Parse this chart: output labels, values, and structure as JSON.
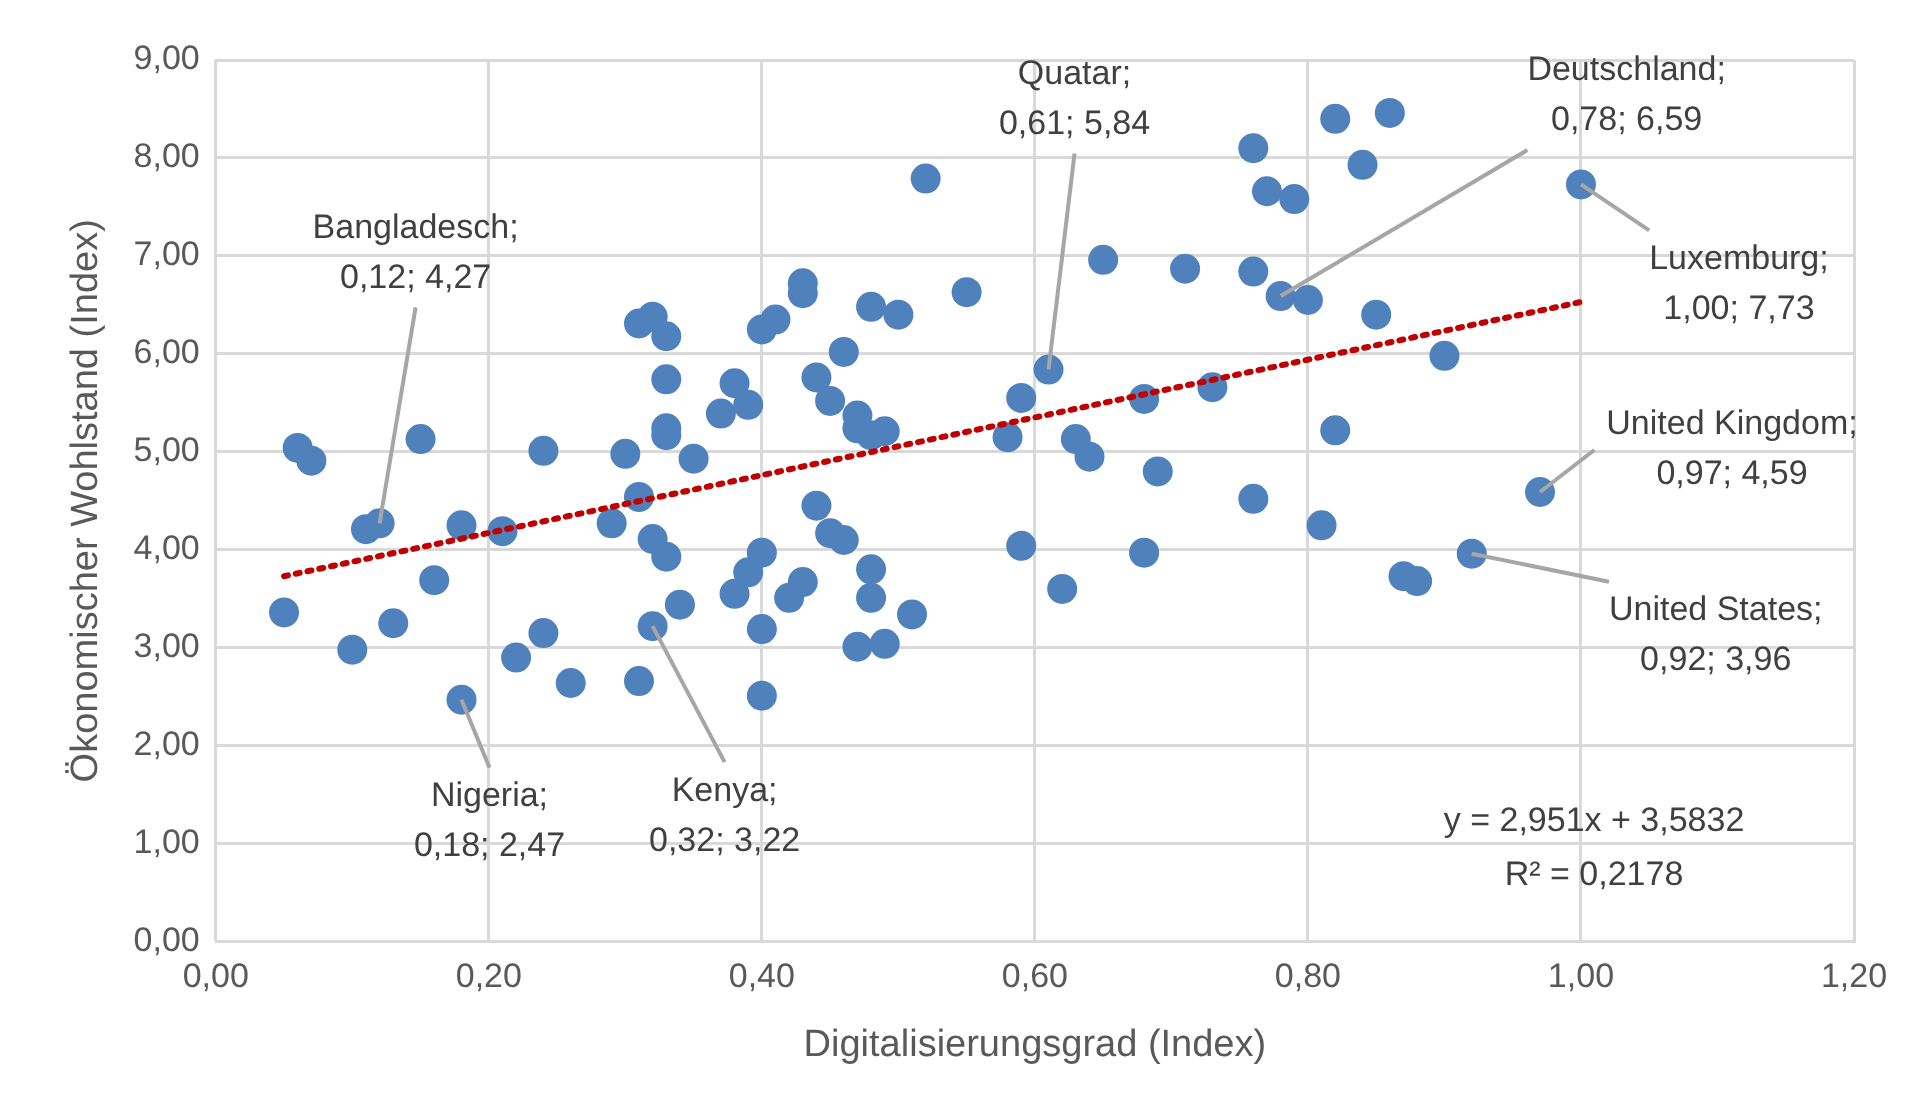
{
  "chart_data": {
    "type": "scatter",
    "xlabel": "Digitalisierungsgrad (Index)",
    "ylabel": "Ökonomischer Wohlstand (Index)",
    "xlim": [
      0,
      1.2
    ],
    "ylim": [
      0,
      9
    ],
    "xticks": [
      {
        "value": 0,
        "label": "0,00"
      },
      {
        "value": 0.2,
        "label": "0,20"
      },
      {
        "value": 0.4,
        "label": "0,40"
      },
      {
        "value": 0.6,
        "label": "0,60"
      },
      {
        "value": 0.8,
        "label": "0,80"
      },
      {
        "value": 1,
        "label": "1,00"
      },
      {
        "value": 1.2,
        "label": "1,20"
      }
    ],
    "yticks": [
      {
        "value": 0,
        "label": "0,00"
      },
      {
        "value": 1,
        "label": "1,00"
      },
      {
        "value": 2,
        "label": "2,00"
      },
      {
        "value": 3,
        "label": "3,00"
      },
      {
        "value": 4,
        "label": "4,00"
      },
      {
        "value": 5,
        "label": "5,00"
      },
      {
        "value": 6,
        "label": "6,00"
      },
      {
        "value": 7,
        "label": "7,00"
      },
      {
        "value": 8,
        "label": "8,00"
      },
      {
        "value": 9,
        "label": "9,00"
      }
    ],
    "grid": true,
    "legend": false,
    "marker": "circle",
    "series": [
      {
        "color": "#4f81bd",
        "x": [
          0.31,
          0.32,
          0.33,
          0.33,
          0.38,
          0.37,
          0.39,
          0.33,
          0.33,
          0.35,
          0.31,
          0.29,
          0.3,
          0.24,
          0.32,
          0.33,
          0.34,
          0.32,
          0.31,
          0.26,
          0.24,
          0.22,
          0.18,
          0.16,
          0.13,
          0.1,
          0.05,
          0.06,
          0.07,
          0.15,
          0.11,
          0.12,
          0.18,
          0.21,
          0.4,
          0.39,
          0.38,
          0.4,
          0.4,
          0.42,
          0.4,
          0.41,
          0.43,
          0.43,
          0.52,
          0.48,
          0.5,
          0.55,
          0.46,
          0.44,
          0.45,
          0.47,
          0.47,
          0.49,
          0.48,
          0.59,
          0.61,
          0.58,
          0.63,
          0.64,
          0.68,
          0.69,
          0.73,
          0.65,
          0.71,
          0.76,
          0.78,
          0.8,
          0.76,
          0.77,
          0.79,
          0.82,
          0.82,
          0.76,
          0.81,
          0.59,
          0.68,
          0.62,
          0.44,
          0.45,
          0.46,
          0.48,
          0.48,
          0.51,
          0.47,
          0.49,
          0.43,
          0.86,
          0.84,
          1.0,
          0.85,
          0.9,
          0.97,
          0.92,
          0.87,
          0.88
        ],
        "values": [
          6.31,
          6.38,
          6.18,
          5.74,
          5.7,
          5.39,
          5.48,
          5.24,
          5.17,
          4.93,
          4.54,
          4.27,
          4.98,
          5.01,
          4.11,
          3.93,
          3.44,
          3.22,
          2.66,
          2.64,
          3.15,
          2.9,
          2.47,
          3.69,
          3.25,
          2.98,
          3.36,
          5.04,
          4.91,
          5.13,
          4.21,
          4.27,
          4.25,
          4.19,
          3.97,
          3.77,
          3.55,
          3.19,
          2.51,
          3.51,
          6.25,
          6.35,
          6.72,
          6.62,
          7.79,
          6.48,
          6.4,
          6.63,
          6.02,
          5.76,
          5.52,
          5.37,
          5.24,
          5.21,
          5.17,
          5.55,
          5.84,
          5.15,
          5.13,
          4.95,
          5.54,
          4.8,
          5.66,
          6.96,
          6.87,
          6.84,
          6.59,
          6.55,
          8.1,
          7.66,
          7.58,
          8.4,
          5.22,
          4.52,
          4.25,
          4.04,
          3.97,
          3.6,
          4.45,
          4.17,
          4.1,
          3.8,
          3.51,
          3.34,
          3.01,
          3.04,
          3.67,
          8.46,
          7.93,
          7.73,
          6.4,
          5.98,
          4.59,
          3.96,
          3.73,
          3.68
        ]
      },
      {
        "type": "line",
        "color": "#c00000",
        "line_style": "dotted",
        "marker": "none",
        "x": [
          0.05,
          1.0
        ],
        "values": [
          3.73,
          6.53
        ]
      }
    ],
    "annotations": [
      {
        "text": "Bangladesch; 0,12; 4,27",
        "x": 0.12,
        "y": 4.27
      },
      {
        "text": "Nigeria; 0,18; 2,47",
        "x": 0.18,
        "y": 2.47
      },
      {
        "text": "Kenya; 0,32; 3,22",
        "x": 0.32,
        "y": 3.22
      },
      {
        "text": "Quatar; 0,61; 5,84",
        "x": 0.61,
        "y": 5.84
      },
      {
        "text": "Deutschland; 0,78; 6,59",
        "x": 0.78,
        "y": 6.59
      },
      {
        "text": "Luxemburg; 1,00; 7,73",
        "x": 1.0,
        "y": 7.73
      },
      {
        "text": "United Kingdom; 0,97; 4,59",
        "x": 0.97,
        "y": 4.59
      },
      {
        "text": "United States; 0,92; 3,96",
        "x": 0.92,
        "y": 3.96
      },
      "y = 2,951x + 3,5832",
      "R² = 0,2178"
    ]
  }
}
